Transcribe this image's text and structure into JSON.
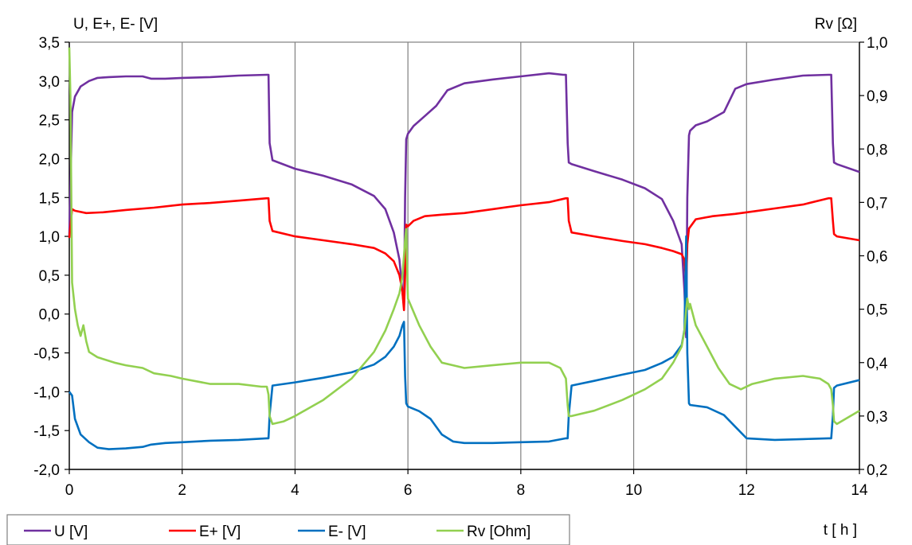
{
  "chart_data": {
    "type": "line",
    "title": "",
    "xlabel": "t [ h ]",
    "ylabel": "U, E+, E- [V]",
    "y2label": "Rv [Ω]",
    "xlim": [
      0,
      14
    ],
    "ylim": [
      -2.0,
      3.5
    ],
    "y2lim": [
      0.2,
      1.0
    ],
    "grid": "vertical",
    "legend_position": "bottom-left",
    "x_ticks": [
      "0",
      "2",
      "4",
      "6",
      "8",
      "10",
      "12",
      "14"
    ],
    "x_tick_values": [
      0,
      2,
      4,
      6,
      8,
      10,
      12,
      14
    ],
    "y_ticks": [
      "3,5",
      "3,0",
      "2,5",
      "2,0",
      "1,5",
      "1,0",
      "0,5",
      "0,0",
      "-0,5",
      "-1,0",
      "-1,5",
      "-2,0"
    ],
    "y_tick_values": [
      3.5,
      3.0,
      2.5,
      2.0,
      1.5,
      1.0,
      0.5,
      0.0,
      -0.5,
      -1.0,
      -1.5,
      -2.0
    ],
    "y2_ticks": [
      "1,0",
      "0,9",
      "0,8",
      "0,7",
      "0,6",
      "0,5",
      "0,4",
      "0,3",
      "0,2"
    ],
    "y2_tick_values": [
      1.0,
      0.9,
      0.8,
      0.7,
      0.6,
      0.5,
      0.4,
      0.3,
      0.2
    ],
    "series": [
      {
        "name": "U [V]",
        "color": "#7030a0",
        "axis": "left",
        "x": [
          0.0,
          0.05,
          0.1,
          0.2,
          0.35,
          0.5,
          0.7,
          1.0,
          1.3,
          1.45,
          1.7,
          2.0,
          2.5,
          3.0,
          3.5,
          3.53,
          3.55,
          3.6,
          4.0,
          4.5,
          5.0,
          5.4,
          5.6,
          5.75,
          5.85,
          5.9,
          5.93,
          5.95,
          5.97,
          6.0,
          6.1,
          6.3,
          6.5,
          6.7,
          7.0,
          7.5,
          8.0,
          8.5,
          8.75,
          8.8,
          8.83,
          8.85,
          8.9,
          9.3,
          9.8,
          10.2,
          10.5,
          10.7,
          10.85,
          10.9,
          10.93,
          10.95,
          10.98,
          11.0,
          11.1,
          11.3,
          11.6,
          11.8,
          12.0,
          12.5,
          13.0,
          13.45,
          13.5,
          13.53,
          13.55,
          13.6,
          14.0
        ],
        "y": [
          1.0,
          2.6,
          2.8,
          2.93,
          3.0,
          3.04,
          3.05,
          3.06,
          3.06,
          3.03,
          3.03,
          3.04,
          3.05,
          3.07,
          3.08,
          3.08,
          2.2,
          1.98,
          1.87,
          1.78,
          1.67,
          1.52,
          1.35,
          1.05,
          0.7,
          0.3,
          0.1,
          1.5,
          2.25,
          2.32,
          2.42,
          2.55,
          2.68,
          2.88,
          2.97,
          3.02,
          3.06,
          3.1,
          3.08,
          3.08,
          2.2,
          1.95,
          1.93,
          1.84,
          1.73,
          1.62,
          1.48,
          1.2,
          0.9,
          0.3,
          -0.3,
          1.5,
          2.3,
          2.36,
          2.43,
          2.48,
          2.6,
          2.9,
          2.96,
          3.02,
          3.07,
          3.08,
          3.08,
          2.2,
          1.95,
          1.93,
          1.83
        ]
      },
      {
        "name": "E+ [V]",
        "color": "#ff0000",
        "axis": "left",
        "x": [
          0.0,
          0.05,
          0.1,
          0.3,
          0.6,
          1.0,
          1.5,
          2.0,
          2.5,
          3.0,
          3.5,
          3.53,
          3.55,
          3.6,
          4.0,
          4.5,
          5.0,
          5.4,
          5.6,
          5.75,
          5.85,
          5.9,
          5.93,
          5.95,
          5.97,
          6.0,
          6.1,
          6.3,
          6.6,
          7.0,
          7.5,
          8.0,
          8.5,
          8.8,
          8.83,
          8.85,
          8.9,
          9.3,
          9.8,
          10.2,
          10.5,
          10.7,
          10.85,
          10.9,
          10.93,
          10.95,
          10.98,
          11.1,
          11.4,
          11.8,
          12.2,
          12.6,
          13.0,
          13.45,
          13.5,
          13.53,
          13.55,
          13.6,
          14.0
        ],
        "y": [
          0.98,
          1.35,
          1.33,
          1.3,
          1.31,
          1.34,
          1.37,
          1.41,
          1.43,
          1.46,
          1.49,
          1.49,
          1.2,
          1.07,
          1.0,
          0.95,
          0.9,
          0.85,
          0.78,
          0.68,
          0.5,
          0.3,
          0.05,
          0.5,
          1.15,
          1.13,
          1.2,
          1.26,
          1.28,
          1.3,
          1.35,
          1.4,
          1.44,
          1.49,
          1.49,
          1.2,
          1.05,
          1.0,
          0.94,
          0.9,
          0.85,
          0.81,
          0.77,
          0.7,
          0.4,
          0.9,
          1.1,
          1.22,
          1.26,
          1.29,
          1.33,
          1.37,
          1.41,
          1.49,
          1.49,
          1.2,
          1.03,
          1.0,
          0.95
        ]
      },
      {
        "name": "E- [V]",
        "color": "#0070c0",
        "axis": "left",
        "x": [
          0.0,
          0.05,
          0.1,
          0.2,
          0.35,
          0.5,
          0.7,
          1.0,
          1.3,
          1.45,
          1.7,
          2.0,
          2.5,
          3.0,
          3.5,
          3.53,
          3.55,
          3.6,
          4.0,
          4.5,
          5.0,
          5.4,
          5.6,
          5.75,
          5.85,
          5.9,
          5.93,
          5.95,
          5.97,
          6.0,
          6.2,
          6.4,
          6.6,
          6.8,
          7.0,
          7.5,
          8.0,
          8.5,
          8.8,
          8.83,
          8.85,
          8.9,
          9.3,
          9.8,
          10.2,
          10.5,
          10.7,
          10.85,
          10.9,
          10.93,
          10.95,
          10.98,
          11.0,
          11.3,
          11.6,
          11.8,
          12.0,
          12.5,
          13.0,
          13.45,
          13.5,
          13.53,
          13.55,
          13.6,
          14.0
        ],
        "y": [
          -1.0,
          -1.05,
          -1.35,
          -1.55,
          -1.65,
          -1.72,
          -1.74,
          -1.73,
          -1.71,
          -1.68,
          -1.66,
          -1.65,
          -1.63,
          -1.62,
          -1.6,
          -1.6,
          -1.3,
          -0.92,
          -0.88,
          -0.82,
          -0.75,
          -0.65,
          -0.55,
          -0.42,
          -0.28,
          -0.15,
          -0.1,
          -0.8,
          -1.15,
          -1.19,
          -1.25,
          -1.35,
          -1.55,
          -1.64,
          -1.66,
          -1.66,
          -1.65,
          -1.64,
          -1.6,
          -1.6,
          -1.3,
          -0.92,
          -0.86,
          -0.78,
          -0.72,
          -0.63,
          -0.55,
          -0.4,
          -0.2,
          1.0,
          -0.5,
          -1.15,
          -1.17,
          -1.2,
          -1.3,
          -1.45,
          -1.6,
          -1.62,
          -1.61,
          -1.6,
          -1.6,
          -1.3,
          -0.95,
          -0.92,
          -0.85
        ]
      },
      {
        "name": "Rv [Ohm]",
        "color": "#92d050",
        "axis": "right",
        "x": [
          0.0,
          0.02,
          0.05,
          0.1,
          0.15,
          0.2,
          0.25,
          0.3,
          0.35,
          0.5,
          0.8,
          1.0,
          1.3,
          1.5,
          1.8,
          2.0,
          2.5,
          3.0,
          3.4,
          3.5,
          3.53,
          3.55,
          3.6,
          3.8,
          4.0,
          4.5,
          5.0,
          5.4,
          5.6,
          5.75,
          5.85,
          5.9,
          5.93,
          5.95,
          5.97,
          6.0,
          6.2,
          6.4,
          6.6,
          6.8,
          7.0,
          7.5,
          8.0,
          8.5,
          8.7,
          8.8,
          8.83,
          8.85,
          8.9,
          9.3,
          9.8,
          10.2,
          10.5,
          10.7,
          10.85,
          10.9,
          10.93,
          10.95,
          10.98,
          11.0,
          11.1,
          11.3,
          11.5,
          11.7,
          11.9,
          12.1,
          12.5,
          13.0,
          13.3,
          13.45,
          13.5,
          13.53,
          13.55,
          13.6,
          14.0
        ],
        "y": [
          0.99,
          0.9,
          0.55,
          0.5,
          0.47,
          0.45,
          0.47,
          0.44,
          0.42,
          0.41,
          0.4,
          0.395,
          0.39,
          0.38,
          0.375,
          0.37,
          0.36,
          0.36,
          0.355,
          0.355,
          0.34,
          0.3,
          0.285,
          0.29,
          0.3,
          0.33,
          0.37,
          0.42,
          0.46,
          0.5,
          0.53,
          0.56,
          0.6,
          0.63,
          0.65,
          0.52,
          0.47,
          0.43,
          0.4,
          0.395,
          0.39,
          0.395,
          0.4,
          0.4,
          0.39,
          0.37,
          0.32,
          0.3,
          0.3,
          0.31,
          0.33,
          0.35,
          0.37,
          0.4,
          0.43,
          0.46,
          0.5,
          0.52,
          0.5,
          0.51,
          0.47,
          0.43,
          0.39,
          0.36,
          0.35,
          0.36,
          0.37,
          0.375,
          0.37,
          0.36,
          0.35,
          0.32,
          0.29,
          0.285,
          0.31
        ]
      }
    ]
  }
}
